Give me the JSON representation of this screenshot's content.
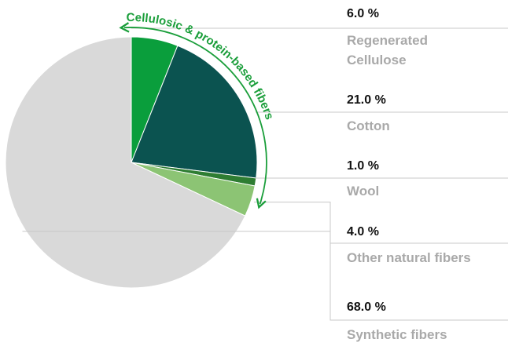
{
  "chart_data": {
    "type": "pie",
    "categories": [
      "Regenerated Cellulose",
      "Cotton",
      "Wool",
      "Other natural fibers",
      "Synthetic fibers"
    ],
    "values": [
      6,
      21,
      1,
      4,
      68
    ],
    "value_labels": [
      "6.0 %",
      "21.0 %",
      "1.0 %",
      "4.0 %",
      "68.0 %"
    ],
    "colors": [
      "#0a9e3c",
      "#0b5350",
      "#2e7d32",
      "#8cc474",
      "#d9d9d9"
    ],
    "annotation": "Cellulosic & protein-based fibers"
  }
}
